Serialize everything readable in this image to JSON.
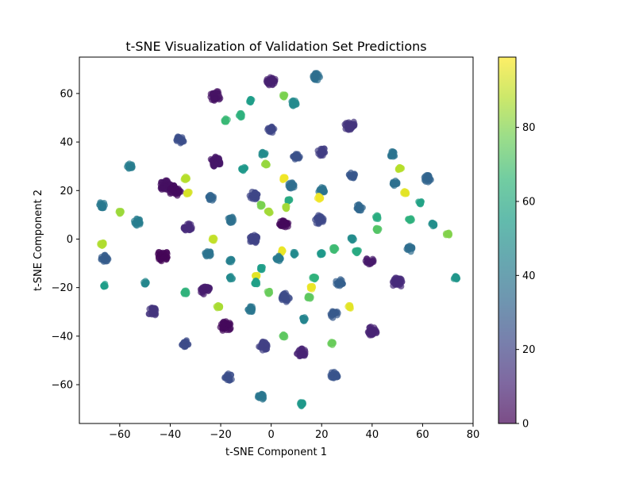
{
  "chart_data": {
    "type": "scatter",
    "title": "t-SNE Visualization of Validation Set Predictions",
    "xlabel": "t-SNE Component 1",
    "ylabel": "t-SNE Component 2",
    "xlim": [
      -76,
      80
    ],
    "ylim": [
      -76,
      75
    ],
    "xticks": [
      -60,
      -40,
      -20,
      0,
      20,
      40,
      60,
      80
    ],
    "yticks": [
      -60,
      -40,
      -20,
      0,
      20,
      40,
      60
    ],
    "grid": false,
    "colorbar": {
      "colormap": "viridis",
      "range": [
        0,
        99
      ],
      "ticks": [
        0,
        20,
        40,
        60,
        80
      ],
      "stops": [
        "#440154",
        "#482878",
        "#3e4989",
        "#31688e",
        "#26828e",
        "#1f9e89",
        "#35b779",
        "#6ece58",
        "#b5de2b",
        "#fde725"
      ]
    },
    "point_alpha": 0.7,
    "clusters": [
      {
        "x": -22,
        "y": 59,
        "label": 5,
        "size": 2.2
      },
      {
        "x": 0,
        "y": 65,
        "label": 9,
        "size": 1.9
      },
      {
        "x": 18,
        "y": 67,
        "label": 36,
        "size": 1.6
      },
      {
        "x": 5,
        "y": 59,
        "label": 79,
        "size": 0.7
      },
      {
        "x": -8,
        "y": 57,
        "label": 55,
        "size": 0.8
      },
      {
        "x": 9,
        "y": 56,
        "label": 47,
        "size": 1.2
      },
      {
        "x": -12,
        "y": 51,
        "label": 63,
        "size": 0.9
      },
      {
        "x": -18,
        "y": 49,
        "label": 67,
        "size": 0.8
      },
      {
        "x": 31,
        "y": 47,
        "label": 15,
        "size": 2.2
      },
      {
        "x": 0,
        "y": 45,
        "label": 21,
        "size": 1.5
      },
      {
        "x": -36,
        "y": 41,
        "label": 24,
        "size": 1.6
      },
      {
        "x": 20,
        "y": 36,
        "label": 18,
        "size": 1.8
      },
      {
        "x": -3,
        "y": 35,
        "label": 48,
        "size": 1.0
      },
      {
        "x": 48,
        "y": 35,
        "label": 38,
        "size": 1.2
      },
      {
        "x": 10,
        "y": 34,
        "label": 25,
        "size": 1.4
      },
      {
        "x": -22,
        "y": 32,
        "label": 6,
        "size": 2.2
      },
      {
        "x": -2,
        "y": 31,
        "label": 83,
        "size": 0.8
      },
      {
        "x": -56,
        "y": 30,
        "label": 42,
        "size": 1.2
      },
      {
        "x": 51,
        "y": 29,
        "label": 88,
        "size": 0.8
      },
      {
        "x": -11,
        "y": 29,
        "label": 53,
        "size": 0.9
      },
      {
        "x": 32,
        "y": 26,
        "label": 27,
        "size": 1.5
      },
      {
        "x": 62,
        "y": 25,
        "label": 32,
        "size": 1.6
      },
      {
        "x": 5,
        "y": 25,
        "label": 97,
        "size": 0.8
      },
      {
        "x": -34,
        "y": 25,
        "label": 88,
        "size": 0.8
      },
      {
        "x": 49,
        "y": 23,
        "label": 37,
        "size": 1.1
      },
      {
        "x": 8,
        "y": 22,
        "label": 35,
        "size": 1.4
      },
      {
        "x": -42,
        "y": 22,
        "label": 4,
        "size": 2.3
      },
      {
        "x": -38,
        "y": 20,
        "label": 3,
        "size": 2.4
      },
      {
        "x": 20,
        "y": 20,
        "label": 38,
        "size": 1.4
      },
      {
        "x": 53,
        "y": 19,
        "label": 95,
        "size": 0.8
      },
      {
        "x": -33,
        "y": 19,
        "label": 93,
        "size": 0.8
      },
      {
        "x": -7,
        "y": 18,
        "label": 21,
        "size": 1.8
      },
      {
        "x": -24,
        "y": 17,
        "label": 32,
        "size": 1.3
      },
      {
        "x": 19,
        "y": 17,
        "label": 97,
        "size": 0.8
      },
      {
        "x": 7,
        "y": 16,
        "label": 60,
        "size": 0.7
      },
      {
        "x": 59,
        "y": 15,
        "label": 57,
        "size": 0.8
      },
      {
        "x": -67,
        "y": 14,
        "label": 40,
        "size": 1.4
      },
      {
        "x": -4,
        "y": 14,
        "label": 79,
        "size": 0.7
      },
      {
        "x": 35,
        "y": 13,
        "label": 33,
        "size": 1.4
      },
      {
        "x": 6,
        "y": 13,
        "label": 85,
        "size": 0.7
      },
      {
        "x": -1,
        "y": 11,
        "label": 85,
        "size": 0.8
      },
      {
        "x": -60,
        "y": 11,
        "label": 84,
        "size": 0.8
      },
      {
        "x": 42,
        "y": 9,
        "label": 61,
        "size": 0.8
      },
      {
        "x": -16,
        "y": 8,
        "label": 37,
        "size": 1.3
      },
      {
        "x": 55,
        "y": 8,
        "label": 63,
        "size": 0.8
      },
      {
        "x": 19,
        "y": 8,
        "label": 22,
        "size": 1.9
      },
      {
        "x": -53,
        "y": 7,
        "label": 42,
        "size": 1.5
      },
      {
        "x": 5,
        "y": 6,
        "label": 2,
        "size": 1.9
      },
      {
        "x": -33,
        "y": 5,
        "label": 12,
        "size": 1.8
      },
      {
        "x": 64,
        "y": 6,
        "label": 49,
        "size": 0.8
      },
      {
        "x": 42,
        "y": 4,
        "label": 72,
        "size": 0.8
      },
      {
        "x": 70,
        "y": 2,
        "label": 80,
        "size": 0.8
      },
      {
        "x": -7,
        "y": 0,
        "label": 20,
        "size": 1.8
      },
      {
        "x": -23,
        "y": 0,
        "label": 90,
        "size": 0.8
      },
      {
        "x": 32,
        "y": 0,
        "label": 48,
        "size": 0.9
      },
      {
        "x": -67,
        "y": -2,
        "label": 87,
        "size": 0.8
      },
      {
        "x": 55,
        "y": -4,
        "label": 35,
        "size": 1.3
      },
      {
        "x": 25,
        "y": -4,
        "label": 68,
        "size": 0.8
      },
      {
        "x": 34,
        "y": -5,
        "label": 60,
        "size": 0.8
      },
      {
        "x": -25,
        "y": -6,
        "label": 38,
        "size": 1.3
      },
      {
        "x": 4,
        "y": -5,
        "label": 96,
        "size": 0.8
      },
      {
        "x": 20,
        "y": -6,
        "label": 53,
        "size": 0.8
      },
      {
        "x": 9,
        "y": -6,
        "label": 47,
        "size": 0.8
      },
      {
        "x": -43,
        "y": -7,
        "label": 1,
        "size": 2.3
      },
      {
        "x": -66,
        "y": -8,
        "label": 29,
        "size": 1.5
      },
      {
        "x": -16,
        "y": -9,
        "label": 43,
        "size": 0.8
      },
      {
        "x": 3,
        "y": -8,
        "label": 41,
        "size": 1.2
      },
      {
        "x": 39,
        "y": -9,
        "label": 7,
        "size": 1.7
      },
      {
        "x": -4,
        "y": -12,
        "label": 55,
        "size": 0.8
      },
      {
        "x": -6,
        "y": -15,
        "label": 95,
        "size": 0.7
      },
      {
        "x": 17,
        "y": -16,
        "label": 64,
        "size": 0.8
      },
      {
        "x": 73,
        "y": -16,
        "label": 52,
        "size": 0.8
      },
      {
        "x": -16,
        "y": -16,
        "label": 47,
        "size": 0.8
      },
      {
        "x": -50,
        "y": -18,
        "label": 46,
        "size": 0.8
      },
      {
        "x": 50,
        "y": -18,
        "label": 12,
        "size": 2.2
      },
      {
        "x": 27,
        "y": -18,
        "label": 30,
        "size": 1.5
      },
      {
        "x": -6,
        "y": -18,
        "label": 56,
        "size": 0.8
      },
      {
        "x": -66,
        "y": -19,
        "label": 55,
        "size": 0.7
      },
      {
        "x": 16,
        "y": -20,
        "label": 96,
        "size": 0.8
      },
      {
        "x": -26,
        "y": -21,
        "label": 8,
        "size": 2.1
      },
      {
        "x": -34,
        "y": -22,
        "label": 64,
        "size": 0.8
      },
      {
        "x": -1,
        "y": -22,
        "label": 76,
        "size": 0.8
      },
      {
        "x": 6,
        "y": -24,
        "label": 23,
        "size": 2.0
      },
      {
        "x": 15,
        "y": -24,
        "label": 74,
        "size": 0.8
      },
      {
        "x": -21,
        "y": -28,
        "label": 86,
        "size": 0.8
      },
      {
        "x": 31,
        "y": -28,
        "label": 95,
        "size": 0.8
      },
      {
        "x": -8,
        "y": -29,
        "label": 39,
        "size": 1.3
      },
      {
        "x": -47,
        "y": -30,
        "label": 15,
        "size": 1.8
      },
      {
        "x": 25,
        "y": -31,
        "label": 28,
        "size": 1.6
      },
      {
        "x": 13,
        "y": -33,
        "label": 45,
        "size": 0.8
      },
      {
        "x": -18,
        "y": -36,
        "label": 2,
        "size": 2.2
      },
      {
        "x": 40,
        "y": -38,
        "label": 10,
        "size": 2.0
      },
      {
        "x": 5,
        "y": -40,
        "label": 74,
        "size": 0.7
      },
      {
        "x": -34,
        "y": -43,
        "label": 23,
        "size": 1.5
      },
      {
        "x": 24,
        "y": -43,
        "label": 76,
        "size": 0.7
      },
      {
        "x": -3,
        "y": -44,
        "label": 19,
        "size": 1.9
      },
      {
        "x": 12,
        "y": -47,
        "label": 10,
        "size": 1.9
      },
      {
        "x": -17,
        "y": -57,
        "label": 24,
        "size": 1.6
      },
      {
        "x": 25,
        "y": -56,
        "label": 26,
        "size": 1.7
      },
      {
        "x": -4,
        "y": -65,
        "label": 39,
        "size": 1.3
      },
      {
        "x": 12,
        "y": -68,
        "label": 53,
        "size": 0.9
      }
    ]
  }
}
